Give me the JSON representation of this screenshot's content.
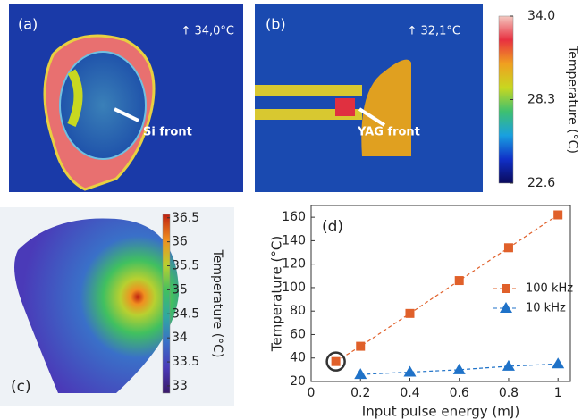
{
  "images": {
    "a": {
      "label": "(a)",
      "max_temp": "↑ 34,0°C",
      "annotation": "Si front"
    },
    "b": {
      "label": "(b)",
      "max_temp": "↑ 32,1°C",
      "annotation": "YAG front"
    },
    "c": {
      "label": "(c)"
    }
  },
  "chart_data": [
    {
      "type": "colorbar",
      "y_label": "Temperature (°C)",
      "ylim": [
        22.6,
        34.0
      ],
      "yticks": [
        {
          "value": 34.0,
          "label": "34.0"
        },
        28.3,
        22.6
      ],
      "colors": [
        "#0a0a5c",
        "#1030c8",
        "#19a0e0",
        "#3ec070",
        "#c8d820",
        "#f0a020",
        "#e83040",
        "#f4c8c0"
      ]
    },
    {
      "type": "colorbar",
      "y_label": "Temperature (°C)",
      "ylim": [
        32.85,
        36.57
      ],
      "yticks": [
        36.5,
        36,
        35.5,
        35,
        34.5,
        34,
        33.5,
        33
      ],
      "colors": [
        "#3a1a6a",
        "#4a3ab8",
        "#3a70c8",
        "#30a8a0",
        "#40c060",
        "#b8d030",
        "#f09020",
        "#c02010"
      ]
    },
    {
      "type": "line",
      "panel_label": "(d)",
      "x_label": "Input pulse energy (mJ)",
      "y_label": "Temperature (°C)",
      "xlim": [
        0,
        1.05
      ],
      "xticks": [
        0,
        0.2,
        0.4,
        0.6,
        0.8,
        1
      ],
      "ylim": [
        20,
        170
      ],
      "yticks": [
        20,
        40,
        60,
        80,
        100,
        120,
        140,
        160
      ],
      "series": [
        {
          "name": "100 kHz",
          "color": "#e0602a",
          "marker": "square",
          "x": [
            0.1,
            0.2,
            0.4,
            0.6,
            0.8,
            1
          ],
          "values": [
            37,
            50,
            78,
            106,
            134,
            162
          ]
        },
        {
          "name": "10 kHz",
          "color": "#1f72c8",
          "marker": "triangle",
          "x": [
            0.2,
            0.4,
            0.6,
            0.8,
            1
          ],
          "values": [
            26,
            28,
            30,
            33,
            35
          ]
        }
      ]
    }
  ]
}
